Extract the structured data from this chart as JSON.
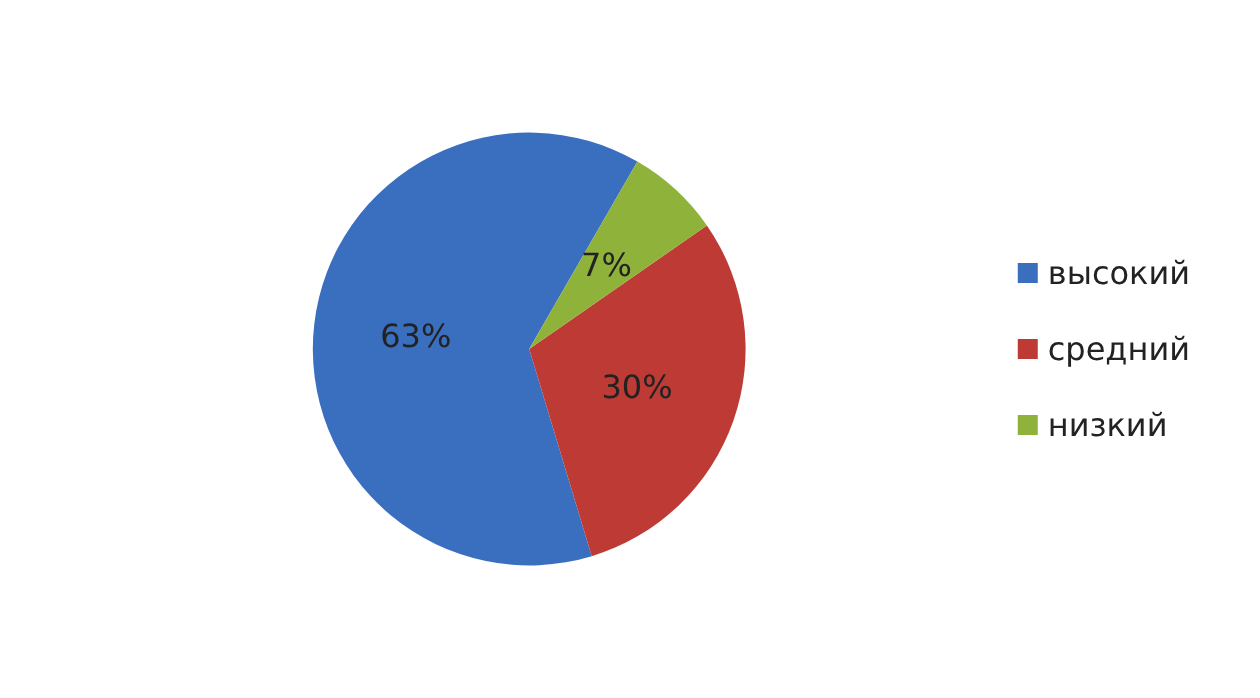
{
  "chart_data": {
    "type": "pie",
    "categories": [
      "высокий",
      "средний",
      "низкий"
    ],
    "values": [
      63,
      30,
      7
    ],
    "value_labels": [
      "63%",
      "30%",
      "7%"
    ],
    "colors": [
      "#3a6fc0",
      "#be3a35",
      "#8fb23b"
    ],
    "legend": "right"
  }
}
